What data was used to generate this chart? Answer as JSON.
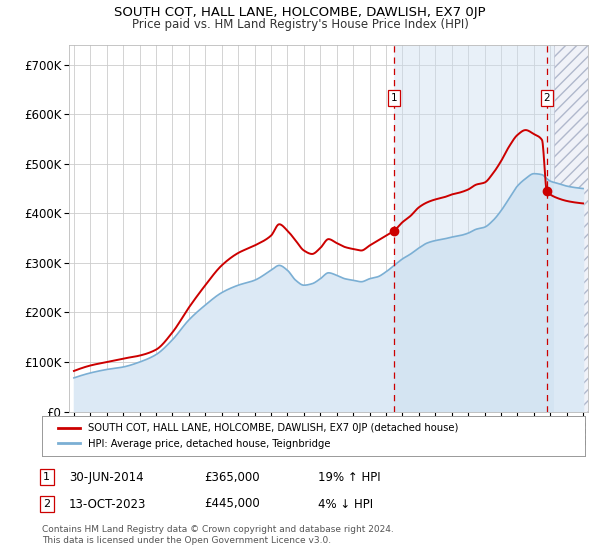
{
  "title": "SOUTH COT, HALL LANE, HOLCOMBE, DAWLISH, EX7 0JP",
  "subtitle": "Price paid vs. HM Land Registry's House Price Index (HPI)",
  "ylabel_ticks": [
    "£0",
    "£100K",
    "£200K",
    "£300K",
    "£400K",
    "£500K",
    "£600K",
    "£700K"
  ],
  "ytick_values": [
    0,
    100000,
    200000,
    300000,
    400000,
    500000,
    600000,
    700000
  ],
  "ylim": [
    0,
    740000
  ],
  "xlim_start": 1994.7,
  "xlim_end": 2026.3,
  "sale1_x": 2014.5,
  "sale1_y": 365000,
  "sale1_label": "30-JUN-2014",
  "sale1_price": "£365,000",
  "sale1_pct": "19% ↑ HPI",
  "sale2_x": 2023.79,
  "sale2_y": 445000,
  "sale2_label": "13-OCT-2023",
  "sale2_price": "£445,000",
  "sale2_pct": "4% ↓ HPI",
  "property_line_color": "#cc0000",
  "hpi_line_color": "#7bafd4",
  "hpi_fill_color": "#dce9f5",
  "sale_marker_color": "#cc0000",
  "vline_color": "#cc0000",
  "legend_label1": "SOUTH COT, HALL LANE, HOLCOMBE, DAWLISH, EX7 0JP (detached house)",
  "legend_label2": "HPI: Average price, detached house, Teignbridge",
  "footer1": "Contains HM Land Registry data © Crown copyright and database right 2024.",
  "footer2": "This data is licensed under the Open Government Licence v3.0.",
  "background_color": "#ffffff",
  "grid_color": "#cccccc",
  "hatch_start": 2024.25
}
